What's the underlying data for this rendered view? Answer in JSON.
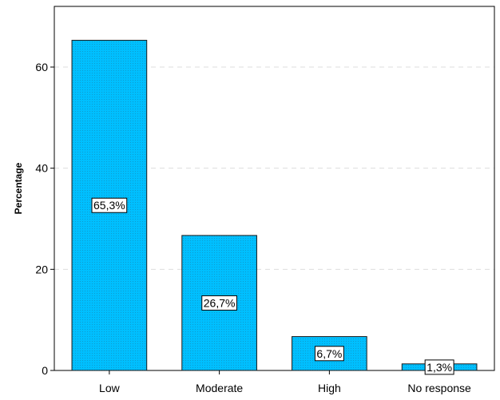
{
  "chart_data": {
    "type": "bar",
    "categories": [
      "Low",
      "Moderate",
      "High",
      "No response"
    ],
    "values": [
      65.3,
      26.7,
      6.7,
      1.3
    ],
    "data_labels": [
      "65,3%",
      "26,7%",
      "6,7%",
      "1,3%"
    ],
    "title": "",
    "xlabel": "",
    "ylabel": "Percentage",
    "ylim": [
      0,
      72
    ],
    "yticks": [
      0,
      20,
      40,
      60
    ],
    "grid": true,
    "bar_color": "#00bfff",
    "bar_edge_color": "#1a1a1a"
  }
}
